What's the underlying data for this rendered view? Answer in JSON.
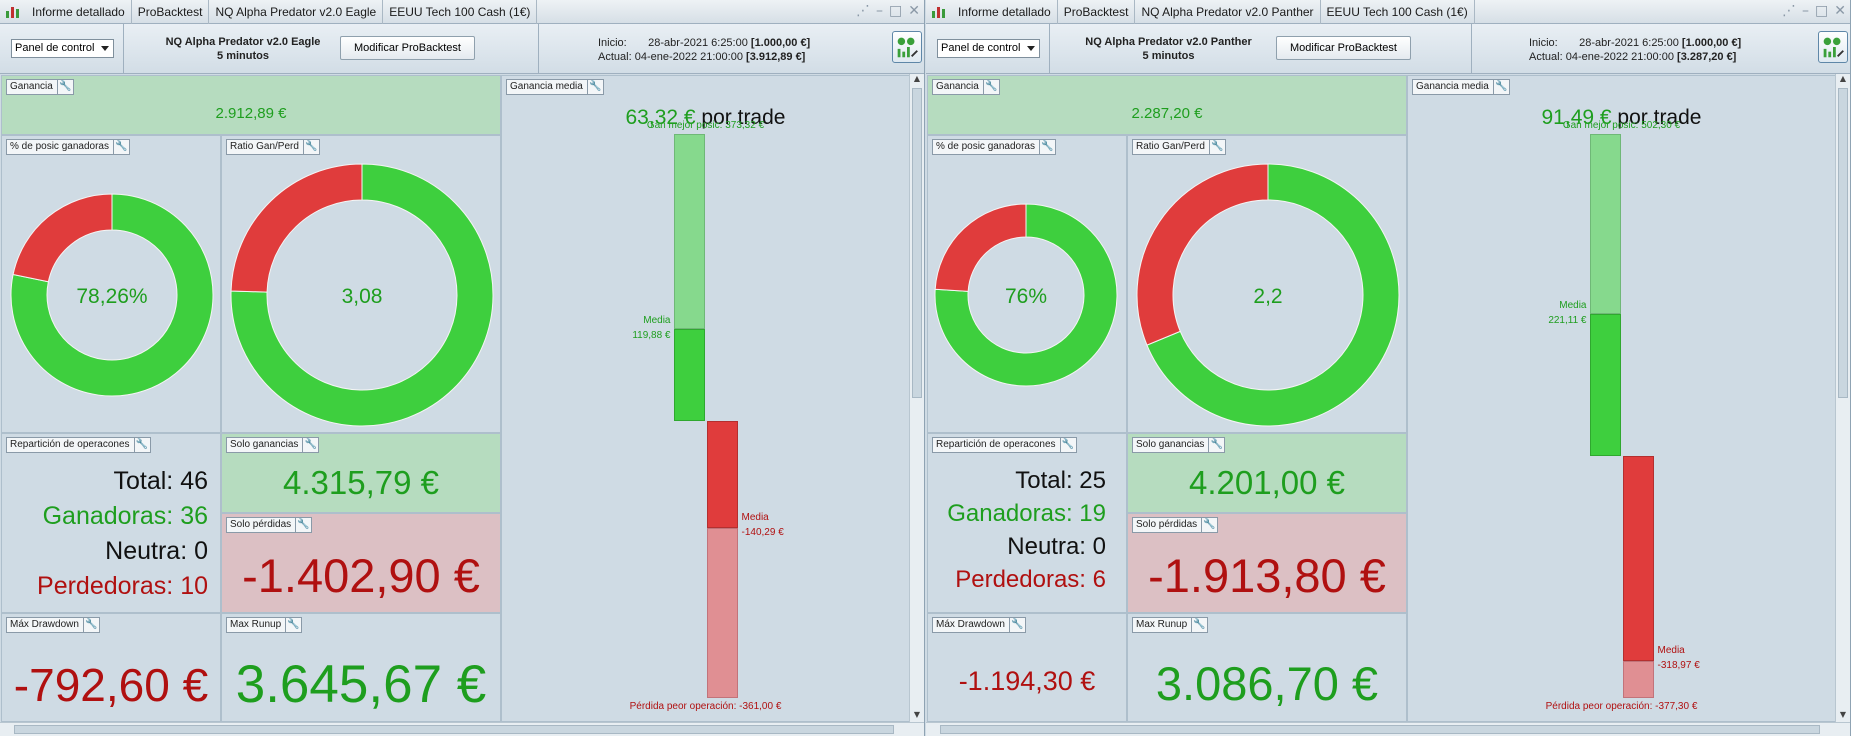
{
  "windows": [
    {
      "tabs": [
        "Informe detallado",
        "ProBacktest",
        "NQ Alpha Predator v2.0 Eagle",
        "EEUU Tech 100 Cash (1€)"
      ],
      "panel_select": "Panel de control",
      "strategy_name": "NQ Alpha Predator v2.0 Eagle",
      "timeframe": "5 minutos",
      "modify_button": "Modificar ProBacktest",
      "start_label": "Inicio:",
      "start_date": "28-abr-2021 6:25:00",
      "start_value": "[1.000,00 €]",
      "current_label": "Actual:",
      "current_date": "04-ene-2022 21:00:00",
      "current_value": "[3.912,89 €]",
      "ganancia": {
        "label": "Ganancia",
        "value": "2.912,89 €"
      },
      "win_pct": {
        "label": "% de posic ganadoras",
        "value": "78,26%",
        "fraction": 0.7826
      },
      "ratio": {
        "label": "Ratio Gan/Perd",
        "value": "3,08",
        "fraction": 0.7549
      },
      "avg": {
        "label": "Ganancia media",
        "value": "63,32 €",
        "suffix": "por trade",
        "best_label": "Gan mejor posic: 373,32 €",
        "media_win_label": "Media",
        "media_win_value": "119,88 €",
        "media_loss_label": "Media",
        "media_loss_value": "-140,29 €",
        "worst_label": "Pérdida peor operación: -361,00 €",
        "best": 373.32,
        "avg_win": 119.88,
        "avg_loss": 140.29,
        "worst": 361.0
      },
      "reparticion": {
        "label": "Repartición de operacones",
        "total_label": "Total:",
        "total": "46",
        "win_label": "Ganadoras:",
        "win": "36",
        "neutral_label": "Neutra:",
        "neutral": "0",
        "loss_label": "Perdedoras:",
        "loss": "10"
      },
      "solo_ganancias": {
        "label": "Solo ganancias",
        "value": "4.315,79 €"
      },
      "solo_perdidas": {
        "label": "Solo pérdidas",
        "value": "-1.402,90 €"
      },
      "drawdown": {
        "label": "Máx Drawdown",
        "value": "-792,60 €"
      },
      "runup": {
        "label": "Max Runup",
        "value": "3.645,67 €"
      }
    },
    {
      "tabs": [
        "Informe detallado",
        "ProBacktest",
        "NQ Alpha Predator v2.0 Panther",
        "EEUU Tech 100 Cash (1€)"
      ],
      "panel_select": "Panel de control",
      "strategy_name": "NQ Alpha Predator v2.0 Panther",
      "timeframe": "5 minutos",
      "modify_button": "Modificar ProBacktest",
      "start_label": "Inicio:",
      "start_date": "28-abr-2021 6:25:00",
      "start_value": "[1.000,00 €]",
      "current_label": "Actual:",
      "current_date": "04-ene-2022 21:00:00",
      "current_value": "[3.287,20 €]",
      "ganancia": {
        "label": "Ganancia",
        "value": "2.287,20 €"
      },
      "win_pct": {
        "label": "% de posic ganadoras",
        "value": "76%",
        "fraction": 0.76
      },
      "ratio": {
        "label": "Ratio Gan/Perd",
        "value": "2,2",
        "fraction": 0.6875
      },
      "avg": {
        "label": "Ganancia media",
        "value": "91,49 €",
        "suffix": "por trade",
        "best_label": "Gan mejor posic: 502,30 €",
        "media_win_label": "Media",
        "media_win_value": "221,11 €",
        "media_loss_label": "Media",
        "media_loss_value": "-318,97 €",
        "worst_label": "Pérdida peor operación: -377,30 €",
        "best": 502.3,
        "avg_win": 221.11,
        "avg_loss": 318.97,
        "worst": 377.3
      },
      "reparticion": {
        "label": "Repartición de operacones",
        "total_label": "Total:",
        "total": "25",
        "win_label": "Ganadoras:",
        "win": "19",
        "neutral_label": "Neutra:",
        "neutral": "0",
        "loss_label": "Perdedoras:",
        "loss": "6"
      },
      "solo_ganancias": {
        "label": "Solo ganancias",
        "value": "4.201,00 €"
      },
      "solo_perdidas": {
        "label": "Solo pérdidas",
        "value": "-1.913,80 €"
      },
      "drawdown": {
        "label": "Máx Drawdown",
        "value": "-1.194,30 €"
      },
      "runup": {
        "label": "Max Runup",
        "value": "3.086,70 €"
      }
    }
  ],
  "colors": {
    "green": "#3ecf3e",
    "red": "#e03c3c",
    "light_green": "#86d98d",
    "light_red": "#e08f93"
  }
}
